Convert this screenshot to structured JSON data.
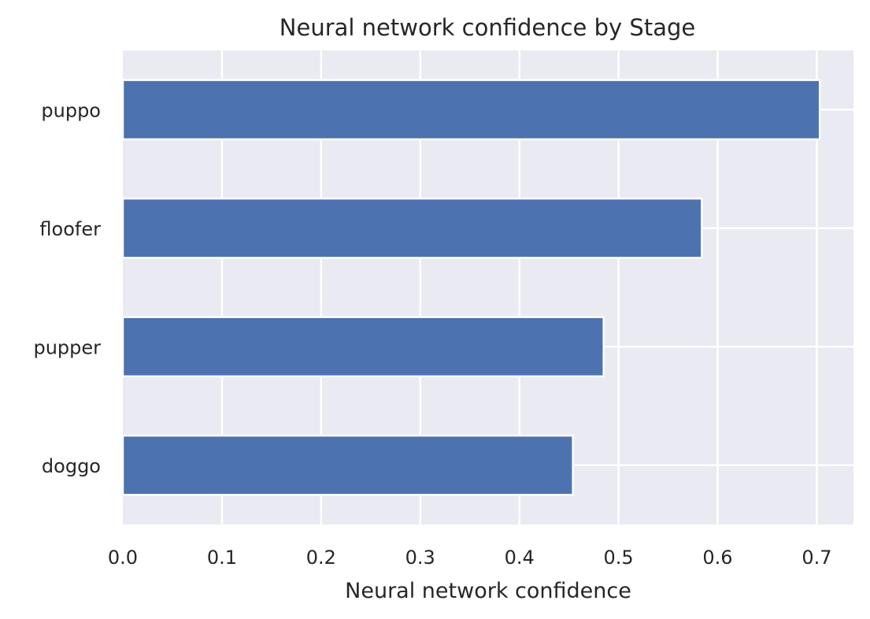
{
  "chart_data": {
    "type": "bar",
    "orientation": "horizontal",
    "title": "Neural network confidence by Stage",
    "xlabel": "Neural network confidence",
    "ylabel": "",
    "categories": [
      "puppo",
      "floofer",
      "pupper",
      "doggo"
    ],
    "values": [
      0.703,
      0.584,
      0.485,
      0.454
    ],
    "xlim": [
      0,
      0.737
    ],
    "xticks": [
      "0.0",
      "0.1",
      "0.2",
      "0.3",
      "0.4",
      "0.5",
      "0.6",
      "0.7"
    ],
    "grid": true,
    "colors": {
      "bar": "#4c72b0",
      "plot_background": "#eaeaf2",
      "grid": "#ffffff"
    }
  }
}
